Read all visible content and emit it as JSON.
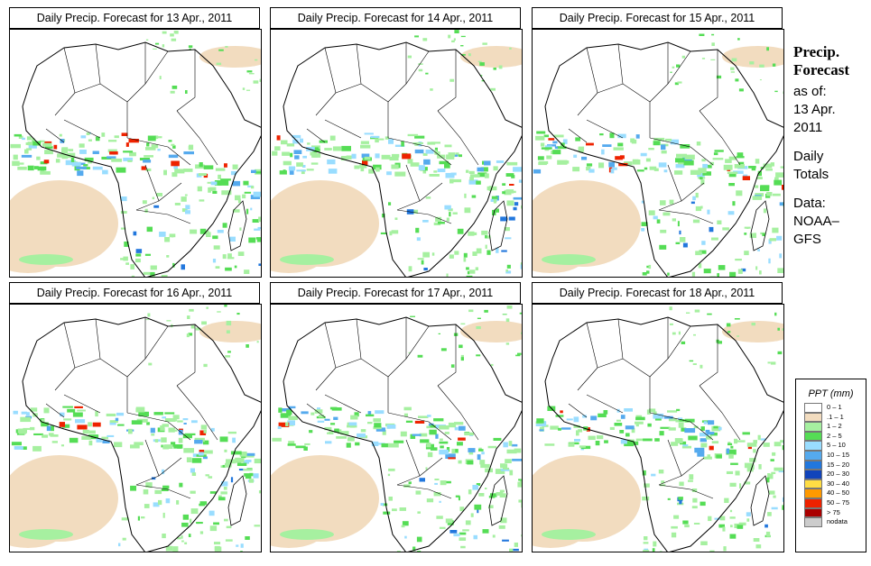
{
  "panels": [
    {
      "title": "Daily Precip. Forecast for  13 Apr., 2011"
    },
    {
      "title": "Daily Precip. Forecast for  14 Apr., 2011"
    },
    {
      "title": "Daily Precip. Forecast for  15 Apr., 2011"
    },
    {
      "title": "Daily Precip. Forecast for  16 Apr., 2011"
    },
    {
      "title": "Daily Precip. Forecast for  17 Apr., 2011"
    },
    {
      "title": "Daily Precip. Forecast for  18 Apr., 2011"
    }
  ],
  "sidebar": {
    "title": "Precip.\nForecast",
    "asof_label": "as of:",
    "date": "13 Apr.\n2011",
    "totals": "Daily\nTotals",
    "source": "Data:\nNOAA–\nGFS"
  },
  "legend": {
    "title": "PPT (mm)",
    "entries": [
      {
        "label": "0 – 1",
        "color": "#ffffff"
      },
      {
        "label": ".1 – 1",
        "color": "#f2dcbf"
      },
      {
        "label": "1 – 2",
        "color": "#a6f0a0"
      },
      {
        "label": "2 – 5",
        "color": "#55dd55"
      },
      {
        "label": "5 – 10",
        "color": "#99ddff"
      },
      {
        "label": "10 – 15",
        "color": "#55aaee"
      },
      {
        "label": "15 – 20",
        "color": "#2277dd"
      },
      {
        "label": "20 – 30",
        "color": "#1144bb"
      },
      {
        "label": "30 – 40",
        "color": "#ffdd44"
      },
      {
        "label": "40 – 50",
        "color": "#ff9900"
      },
      {
        "label": "50 – 75",
        "color": "#ee2200"
      },
      {
        "label": "> 75",
        "color": "#aa0000"
      },
      {
        "label": "nodata",
        "color": "#cccccc"
      }
    ]
  }
}
